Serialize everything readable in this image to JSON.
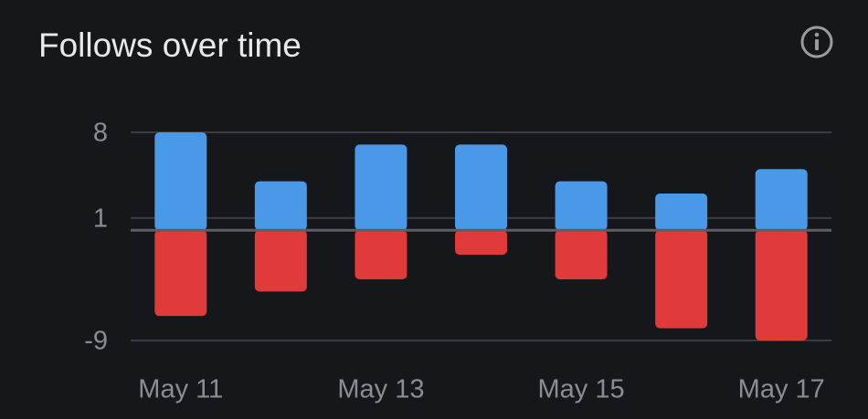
{
  "chart_data": {
    "type": "diverging-bar",
    "title": "Follows over time",
    "categories": [
      "May 11",
      null,
      "May 13",
      null,
      "May 15",
      null,
      "May 17"
    ],
    "series": [
      {
        "color": "#4a99e9",
        "values": [
          8,
          4,
          7,
          7,
          4,
          3,
          5
        ]
      },
      {
        "color": "#e03a3a",
        "values": [
          -7,
          -5,
          -4,
          -2,
          -4,
          -8,
          -9
        ]
      }
    ],
    "ylim": [
      -9,
      8
    ],
    "yticks": [
      8,
      1,
      -9
    ],
    "grid": true
  }
}
